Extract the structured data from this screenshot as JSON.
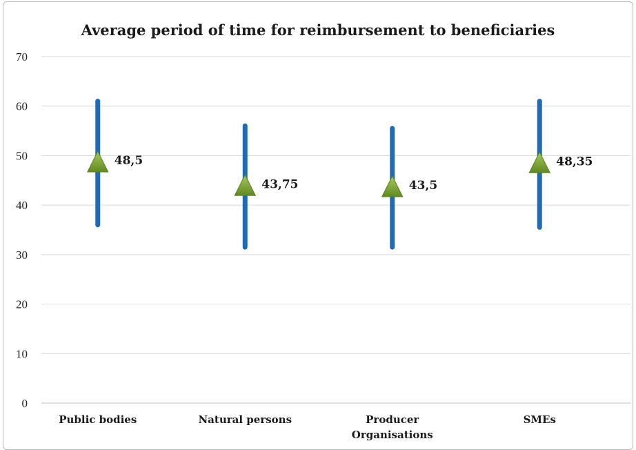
{
  "chart_data": {
    "type": "scatter",
    "title": "Average period of time for reimbursement to beneficiaries",
    "xlabel": "",
    "ylabel": "",
    "ylim": [
      0,
      70
    ],
    "yticks": [
      0,
      10,
      20,
      30,
      40,
      50,
      60,
      70
    ],
    "grid": true,
    "categories": [
      [
        "Public bodies"
      ],
      [
        "Natural persons"
      ],
      [
        "Producer",
        "Organisations"
      ],
      [
        "SMEs"
      ]
    ],
    "values": [
      48.5,
      43.75,
      43.5,
      48.35
    ],
    "value_labels": [
      "48,5",
      "43,75",
      "43,5",
      "48,35"
    ],
    "ranges": [
      [
        36,
        61
      ],
      [
        31.5,
        56
      ],
      [
        31.5,
        55.5
      ],
      [
        35.5,
        61
      ]
    ],
    "colors": {
      "range_line": "#1f6bb5",
      "marker": "#7fa63a",
      "gridline": "#d9d9d9",
      "axis": "#bfbfbf"
    }
  }
}
